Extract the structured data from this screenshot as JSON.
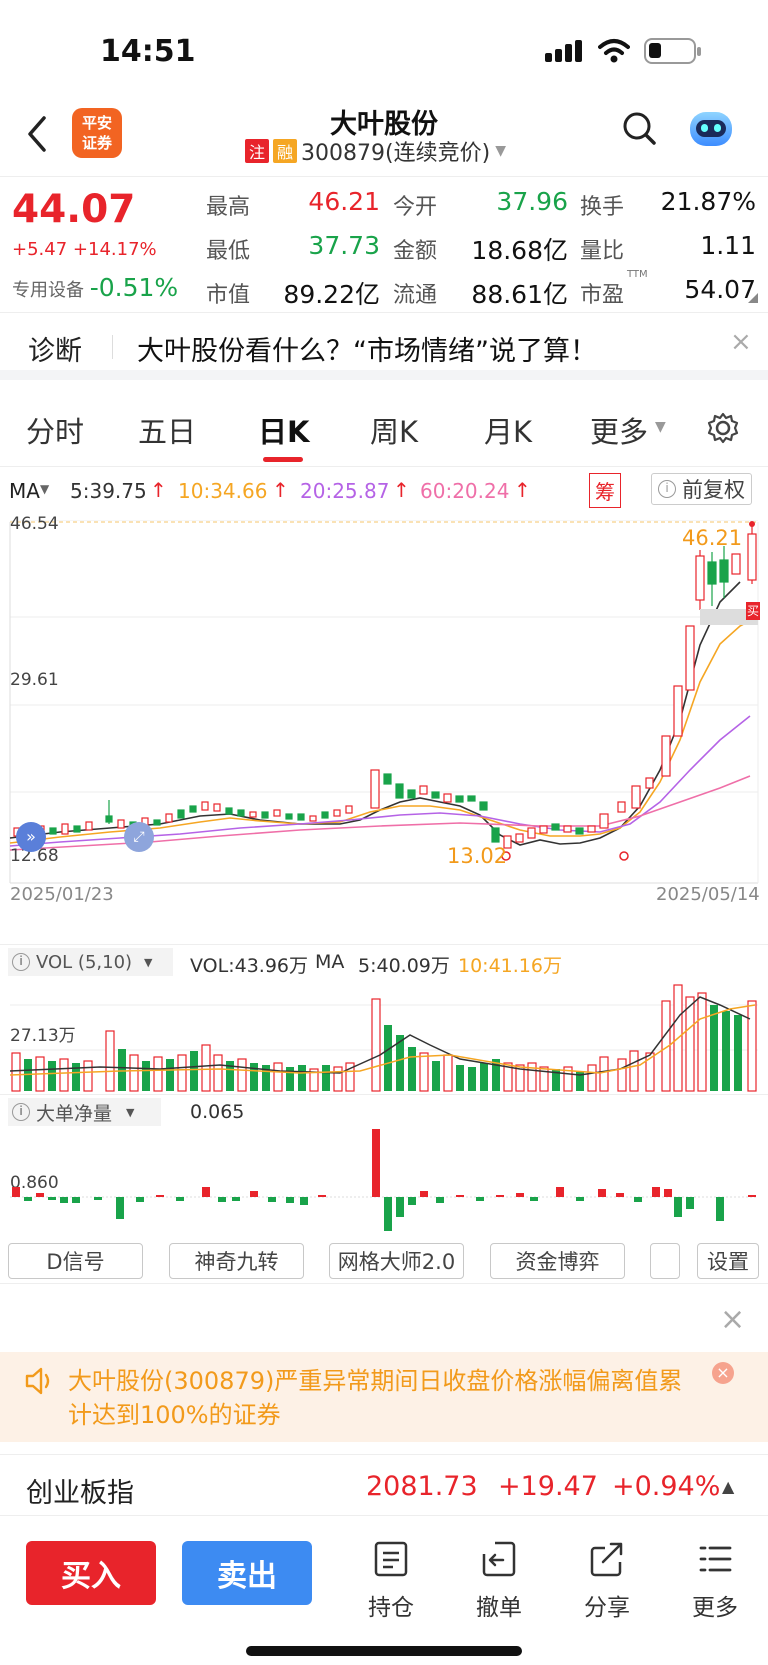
{
  "status_bar": {
    "time": "14:51"
  },
  "header": {
    "logo_text": "平安\n证券",
    "title": "大叶股份",
    "badge_1": "注",
    "badge_2": "融",
    "subtitle": "300879(连续竞价)"
  },
  "quote": {
    "price": "44.07",
    "change": "+5.47",
    "change_pct": "+14.17%",
    "sector": "专用设备",
    "sector_pct": "-0.51%",
    "fields": [
      {
        "label": "最高",
        "value": "46.21"
      },
      {
        "label": "今开",
        "value": "37.96"
      },
      {
        "label": "换手",
        "value": "21.87%"
      },
      {
        "label": "最低",
        "value": "37.73"
      },
      {
        "label": "金额",
        "value": "18.68亿"
      },
      {
        "label": "量比",
        "value": "1.11"
      },
      {
        "label": "市值",
        "value": "89.22亿"
      },
      {
        "label": "流通",
        "value": "88.61亿"
      },
      {
        "label": "市盈",
        "value": "54.07"
      }
    ],
    "pe_sup": "TTM"
  },
  "diagnosis": {
    "label": "诊断",
    "text": "大叶股份看什么？“市场情绪”说了算！"
  },
  "tabs": [
    "分时",
    "五日",
    "日K",
    "周K",
    "月K",
    "更多"
  ],
  "active_tab": "日K",
  "ma_bar": {
    "label": "MA",
    "ma5": "5:39.75",
    "ma10": "10:34.66",
    "ma20": "20:25.87",
    "ma60": "60:20.24",
    "chip": "筹",
    "adjust": "前复权"
  },
  "kline": {
    "y_high": "46.54",
    "y_mid": "29.61",
    "y_low": "12.68",
    "max_label": "46.21",
    "min_label": "13.02",
    "buy_marker": "买",
    "date_start": "2025/01/23",
    "date_end": "2025/05/14"
  },
  "volume": {
    "label": "VOL (5,10)",
    "vol": "VOL:43.96万",
    "ma_label": "MA",
    "ma5": "5:40.09万",
    "ma10": "10:41.16万",
    "y_label": "27.13万"
  },
  "big_order": {
    "label": "大单净量",
    "value": "0.065",
    "y_label": "0.860"
  },
  "indicator_buttons": [
    "D信号",
    "神奇九转",
    "网格大师2.0",
    "资金博弈",
    "",
    "设置"
  ],
  "notice": {
    "text": "大叶股份(300879)严重异常期间日收盘价格涨幅偏离值累计达到100%的证券"
  },
  "index_bar": {
    "name": "创业板指",
    "value": "2081.73",
    "change": "+19.47",
    "pct": "+0.94%"
  },
  "bottom": {
    "buy": "买入",
    "sell": "卖出",
    "items": [
      "持仓",
      "撤单",
      "分享",
      "更多"
    ]
  },
  "colors": {
    "up": "#e8242b",
    "down": "#19a34a",
    "ma5": "#333333",
    "ma10": "#f5a623",
    "ma20": "#b563e6",
    "ma60": "#ef6fa8"
  }
}
